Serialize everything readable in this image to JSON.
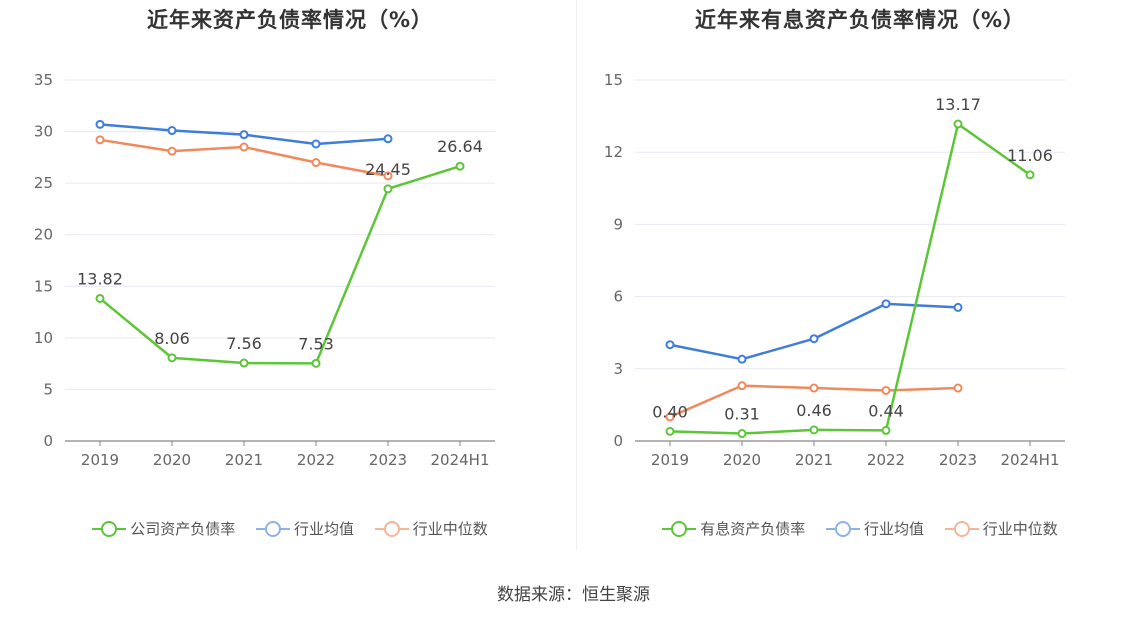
{
  "source": "数据来源：恒生聚源",
  "chart_data": [
    {
      "type": "line",
      "title": "近年来资产负债率情况（%）",
      "categories": [
        "2019",
        "2020",
        "2021",
        "2022",
        "2023",
        "2024H1"
      ],
      "ylim": [
        0,
        35
      ],
      "yticks": [
        0,
        5,
        10,
        15,
        20,
        25,
        30,
        35
      ],
      "series": [
        {
          "name": "公司资产负债率",
          "color": "#5cc638",
          "labeled": true,
          "values": [
            13.82,
            8.06,
            7.56,
            7.53,
            24.45,
            26.64
          ],
          "labels": [
            "13.82",
            "8.06",
            "7.56",
            "7.53",
            "24.45",
            "26.64"
          ]
        },
        {
          "name": "行业均值",
          "color": "#3f7ddc",
          "labeled": false,
          "values": [
            30.7,
            30.1,
            29.7,
            28.8,
            29.3,
            null
          ]
        },
        {
          "name": "行业中位数",
          "color": "#f08a5d",
          "labeled": false,
          "values": [
            29.2,
            28.1,
            28.5,
            27.0,
            25.7,
            null
          ]
        }
      ]
    },
    {
      "type": "line",
      "title": "近年来有息资产负债率情况（%）",
      "categories": [
        "2019",
        "2020",
        "2021",
        "2022",
        "2023",
        "2024H1"
      ],
      "ylim": [
        0,
        15
      ],
      "yticks": [
        0,
        3,
        6,
        9,
        12,
        15
      ],
      "series": [
        {
          "name": "有息资产负债率",
          "color": "#5cc638",
          "labeled": true,
          "values": [
            0.4,
            0.31,
            0.46,
            0.44,
            13.17,
            11.06
          ],
          "labels": [
            "0.40",
            "0.31",
            "0.46",
            "0.44",
            "13.17",
            "11.06"
          ]
        },
        {
          "name": "行业均值",
          "color": "#3f7ddc",
          "labeled": false,
          "values": [
            4.0,
            3.4,
            4.25,
            5.7,
            5.55,
            null
          ]
        },
        {
          "name": "行业中位数",
          "color": "#f08a5d",
          "labeled": false,
          "values": [
            1.0,
            2.3,
            2.2,
            2.1,
            2.2,
            null
          ]
        }
      ]
    }
  ]
}
